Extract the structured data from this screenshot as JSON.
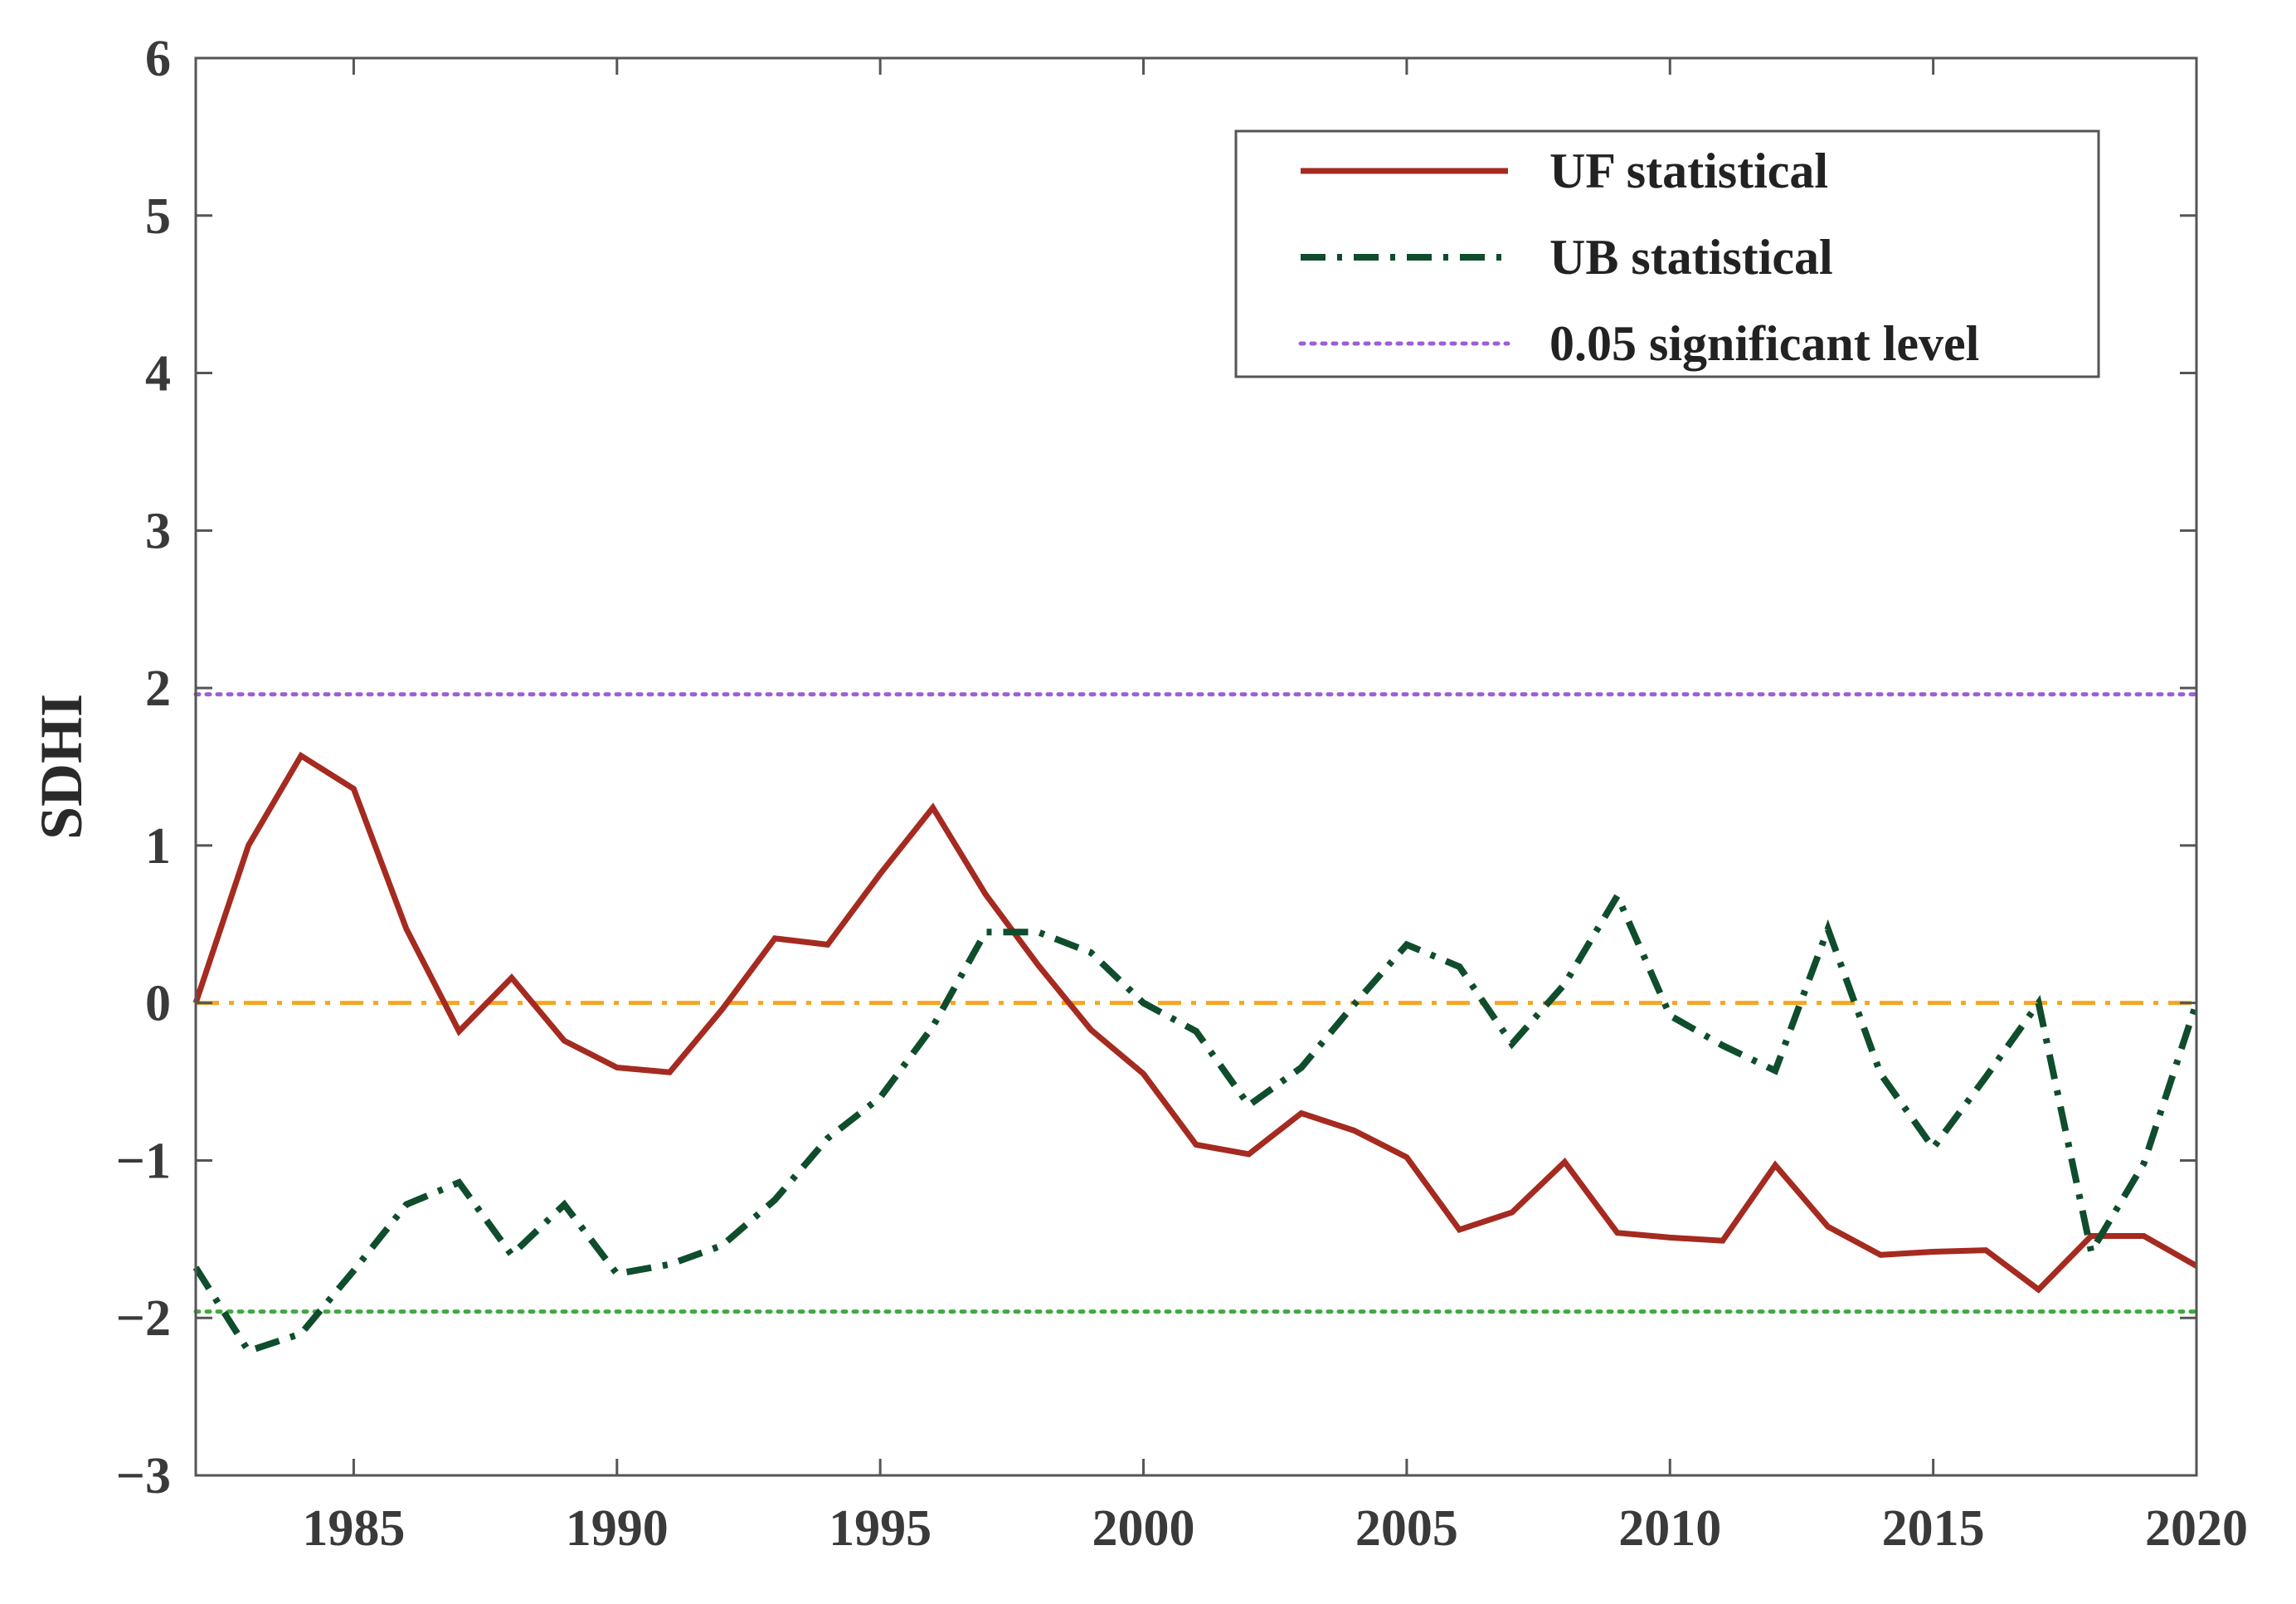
{
  "chart_data": {
    "type": "line",
    "title": "",
    "xlabel": "",
    "ylabel": "SDHI",
    "xlim": [
      1982,
      2020
    ],
    "ylim": [
      -3,
      6
    ],
    "xticks": [
      1985,
      1990,
      1995,
      2000,
      2005,
      2010,
      2015,
      2020
    ],
    "yticks": [
      -3,
      -2,
      -1,
      0,
      1,
      2,
      3,
      4,
      5,
      6
    ],
    "ytick_labels": [
      "−3",
      "−2",
      "−1",
      "0",
      "1",
      "2",
      "3",
      "4",
      "5",
      "6"
    ],
    "grid": false,
    "legend_position": "top-right",
    "x": [
      1982,
      1983,
      1984,
      1985,
      1986,
      1987,
      1988,
      1989,
      1990,
      1991,
      1992,
      1993,
      1994,
      1995,
      1996,
      1997,
      1998,
      1999,
      2000,
      2001,
      2002,
      2003,
      2004,
      2005,
      2006,
      2007,
      2008,
      2009,
      2010,
      2011,
      2012,
      2013,
      2014,
      2015,
      2016,
      2017,
      2018,
      2019,
      2020
    ],
    "series": [
      {
        "name": "UF statistical",
        "style": "solid",
        "color": "#a52a20",
        "values": [
          0,
          1.0,
          1.57,
          1.36,
          0.47,
          -0.18,
          0.16,
          -0.24,
          -0.41,
          -0.44,
          -0.04,
          0.41,
          0.37,
          0.82,
          1.24,
          0.69,
          0.24,
          -0.17,
          -0.45,
          -0.9,
          -0.96,
          -0.7,
          -0.81,
          -0.98,
          -1.44,
          -1.33,
          -1.01,
          -1.46,
          -1.49,
          -1.51,
          -1.03,
          -1.42,
          -1.6,
          -1.58,
          -1.57,
          -1.82,
          -1.48,
          -1.48,
          -1.67
        ]
      },
      {
        "name": "UB statistical",
        "style": "dashdot",
        "color": "#0f4d2c",
        "values": [
          -1.68,
          -2.21,
          -2.1,
          -1.7,
          -1.28,
          -1.14,
          -1.6,
          -1.28,
          -1.72,
          -1.66,
          -1.54,
          -1.25,
          -0.86,
          -0.6,
          -0.15,
          0.45,
          0.45,
          0.32,
          0.0,
          -0.18,
          -0.65,
          -0.41,
          -0.01,
          0.37,
          0.23,
          -0.26,
          0.12,
          0.68,
          -0.08,
          -0.27,
          -0.43,
          0.47,
          -0.45,
          -0.92,
          -0.47,
          0.0,
          -1.58,
          -1.02,
          0.0
        ]
      }
    ],
    "reference_lines": [
      {
        "name": "0.05 significant level",
        "y": 1.96,
        "style": "dotted",
        "color": "#9b5fd6",
        "in_legend": true
      },
      {
        "name": "0.05 significant level (lower)",
        "y": -1.96,
        "style": "dotted",
        "color": "#3faa3f",
        "in_legend": false
      },
      {
        "name": "zero line",
        "y": 0,
        "style": "dashdot",
        "color": "#f5a623",
        "in_legend": false
      }
    ],
    "legend": [
      {
        "label": "UF statistical",
        "style": "solid",
        "color": "#a52a20"
      },
      {
        "label": "UB statistical",
        "style": "dashdot",
        "color": "#0f4d2c"
      },
      {
        "label": "0.05 significant level",
        "style": "dotted",
        "color": "#9b5fd6"
      }
    ]
  }
}
